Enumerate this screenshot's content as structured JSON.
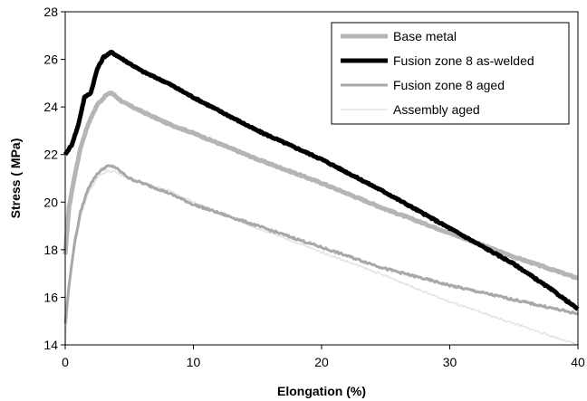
{
  "chart_data": {
    "type": "line",
    "title": "",
    "xlabel": "Elongation (%)",
    "ylabel": "Stress ( MPa)",
    "xlim": [
      0,
      40
    ],
    "ylim": [
      14,
      28
    ],
    "xticks": [
      0,
      10,
      20,
      30,
      40
    ],
    "yticks": [
      14,
      16,
      18,
      20,
      22,
      24,
      26,
      28
    ],
    "x_tick_labels": [
      "0",
      "10",
      "20",
      "30",
      "40"
    ],
    "y_tick_labels": [
      "14",
      "16",
      "18",
      "20",
      "22",
      "24",
      "26",
      "28"
    ],
    "grid": false,
    "legend_position": "top-right",
    "series": [
      {
        "name": "Base metal",
        "color": "#b5b5b5",
        "style": "thick",
        "points": [
          [
            0,
            17.8
          ],
          [
            0.3,
            19.8
          ],
          [
            0.7,
            21.0
          ],
          [
            1.2,
            22.3
          ],
          [
            1.8,
            23.3
          ],
          [
            2.5,
            24.1
          ],
          [
            3.2,
            24.5
          ],
          [
            3.6,
            24.6
          ],
          [
            4.5,
            24.2
          ],
          [
            6,
            23.8
          ],
          [
            8,
            23.3
          ],
          [
            10,
            22.9
          ],
          [
            15,
            21.8
          ],
          [
            20,
            20.8
          ],
          [
            25,
            19.7
          ],
          [
            30,
            18.7
          ],
          [
            35,
            17.7
          ],
          [
            40,
            16.8
          ]
        ]
      },
      {
        "name": "Fusion zone 8 as-welded",
        "color": "#000000",
        "style": "thick",
        "points": [
          [
            0,
            22.0
          ],
          [
            0.5,
            22.4
          ],
          [
            1.0,
            23.2
          ],
          [
            1.5,
            24.4
          ],
          [
            2.0,
            24.6
          ],
          [
            2.5,
            25.6
          ],
          [
            3.0,
            26.1
          ],
          [
            3.6,
            26.3
          ],
          [
            4.5,
            26.0
          ],
          [
            6,
            25.5
          ],
          [
            8,
            25.0
          ],
          [
            10,
            24.4
          ],
          [
            15,
            23.0
          ],
          [
            20,
            21.8
          ],
          [
            25,
            20.4
          ],
          [
            30,
            18.9
          ],
          [
            33,
            18.0
          ],
          [
            35,
            17.4
          ],
          [
            38,
            16.3
          ],
          [
            40,
            15.5
          ]
        ]
      },
      {
        "name": "Fusion zone 8 aged",
        "color": "#a8a8a8",
        "style": "medium",
        "points": [
          [
            0,
            14.9
          ],
          [
            0.3,
            16.5
          ],
          [
            0.7,
            18.2
          ],
          [
            1.2,
            19.6
          ],
          [
            1.8,
            20.6
          ],
          [
            2.5,
            21.2
          ],
          [
            3.2,
            21.5
          ],
          [
            3.8,
            21.5
          ],
          [
            5,
            21.0
          ],
          [
            8,
            20.4
          ],
          [
            10,
            19.9
          ],
          [
            15,
            19.0
          ],
          [
            20,
            18.1
          ],
          [
            25,
            17.2
          ],
          [
            30,
            16.5
          ],
          [
            35,
            15.9
          ],
          [
            40,
            15.3
          ]
        ]
      },
      {
        "name": "Assembly aged",
        "color": "#e4e4e4",
        "style": "thin",
        "points": [
          [
            0,
            14.0
          ],
          [
            0.3,
            16.3
          ],
          [
            0.7,
            18.0
          ],
          [
            1.2,
            19.4
          ],
          [
            1.8,
            20.4
          ],
          [
            2.5,
            21.0
          ],
          [
            3.2,
            21.3
          ],
          [
            3.8,
            21.3
          ],
          [
            5,
            21.0
          ],
          [
            8,
            20.5
          ],
          [
            10,
            20.0
          ],
          [
            15,
            18.9
          ],
          [
            20,
            17.9
          ],
          [
            25,
            16.9
          ],
          [
            30,
            15.8
          ],
          [
            35,
            14.9
          ],
          [
            40,
            14.0
          ]
        ]
      }
    ]
  }
}
